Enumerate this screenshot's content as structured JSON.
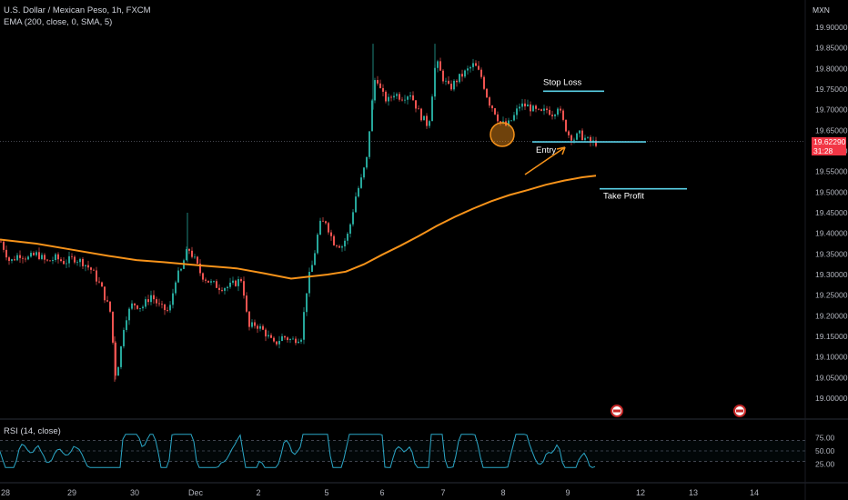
{
  "header": {
    "title": "U.S. Dollar / Mexican Peso, 1h, FXCM",
    "indicator": "EMA (200, close, 0, SMA, 5)",
    "currency": "MXN",
    "rsi_label": "RSI (14, close)"
  },
  "price_tag": {
    "price": "19.62290",
    "countdown": "31:28"
  },
  "colors": {
    "background": "#000000",
    "up": "#26a69a",
    "down": "#ef5350",
    "ema": "#f7931a",
    "rsi": "#2ba8c8",
    "level": "#5ad1e8",
    "marker": "#f7931a",
    "price_tag": "#f23645"
  },
  "annotations": {
    "stop_loss": "Stop Loss",
    "entry": "Entry",
    "take_profit": "Take Profit"
  },
  "chart_data": {
    "type": "candlestick",
    "title": "U.S. Dollar / Mexican Peso, 1h, FXCM",
    "ylim": [
      18.98,
      19.93
    ],
    "y_ticks": [
      "19.90000",
      "19.85000",
      "19.80000",
      "19.75000",
      "19.70000",
      "19.65000",
      "19.60000",
      "19.55000",
      "19.50000",
      "19.45000",
      "19.40000",
      "19.35000",
      "19.30000",
      "19.25000",
      "19.20000",
      "19.15000",
      "19.10000",
      "19.05000",
      "19.00000"
    ],
    "x_ticks": [
      "28",
      "29",
      "30",
      "Dec",
      "2",
      "5",
      "6",
      "7",
      "8",
      "9",
      "12",
      "13",
      "14"
    ],
    "last_price": 19.6229,
    "levels": {
      "stop_loss": 19.745,
      "entry": 19.622,
      "take_profit": 19.508
    },
    "ema_200": [
      [
        0,
        19.385
      ],
      [
        40,
        19.375
      ],
      [
        80,
        19.36
      ],
      [
        120,
        19.345
      ],
      [
        150,
        19.335
      ],
      [
        180,
        19.33
      ],
      [
        220,
        19.322
      ],
      [
        260,
        19.315
      ],
      [
        290,
        19.303
      ],
      [
        320,
        19.29
      ],
      [
        340,
        19.295
      ],
      [
        360,
        19.3
      ],
      [
        380,
        19.307
      ],
      [
        400,
        19.325
      ],
      [
        420,
        19.348
      ],
      [
        440,
        19.37
      ],
      [
        460,
        19.393
      ],
      [
        480,
        19.418
      ],
      [
        500,
        19.44
      ],
      [
        520,
        19.46
      ],
      [
        540,
        19.478
      ],
      [
        560,
        19.493
      ],
      [
        580,
        19.505
      ],
      [
        600,
        19.518
      ],
      [
        620,
        19.528
      ],
      [
        640,
        19.536
      ],
      [
        655,
        19.54
      ]
    ],
    "close_path": [
      [
        0,
        19.38
      ],
      [
        10,
        19.33
      ],
      [
        20,
        19.35
      ],
      [
        30,
        19.34
      ],
      [
        40,
        19.35
      ],
      [
        50,
        19.33
      ],
      [
        60,
        19.34
      ],
      [
        70,
        19.33
      ],
      [
        80,
        19.34
      ],
      [
        90,
        19.33
      ],
      [
        100,
        19.31
      ],
      [
        110,
        19.27
      ],
      [
        120,
        19.21
      ],
      [
        126,
        19.06
      ],
      [
        130,
        19.09
      ],
      [
        136,
        19.19
      ],
      [
        145,
        19.23
      ],
      [
        155,
        19.22
      ],
      [
        165,
        19.25
      ],
      [
        175,
        19.22
      ],
      [
        185,
        19.21
      ],
      [
        192,
        19.29
      ],
      [
        198,
        19.31
      ],
      [
        203,
        19.35
      ],
      [
        207,
        19.36
      ],
      [
        212,
        19.34
      ],
      [
        220,
        19.3
      ],
      [
        230,
        19.28
      ],
      [
        240,
        19.27
      ],
      [
        250,
        19.27
      ],
      [
        258,
        19.28
      ],
      [
        265,
        19.29
      ],
      [
        272,
        19.17
      ],
      [
        280,
        19.18
      ],
      [
        290,
        19.16
      ],
      [
        300,
        19.13
      ],
      [
        310,
        19.15
      ],
      [
        320,
        19.14
      ],
      [
        330,
        19.15
      ],
      [
        337,
        19.28
      ],
      [
        343,
        19.33
      ],
      [
        350,
        19.42
      ],
      [
        357,
        19.43
      ],
      [
        365,
        19.38
      ],
      [
        375,
        19.37
      ],
      [
        382,
        19.4
      ],
      [
        390,
        19.49
      ],
      [
        396,
        19.53
      ],
      [
        402,
        19.58
      ],
      [
        407,
        19.7
      ],
      [
        412,
        19.79
      ],
      [
        418,
        19.74
      ],
      [
        425,
        19.72
      ],
      [
        432,
        19.74
      ],
      [
        440,
        19.73
      ],
      [
        450,
        19.74
      ],
      [
        460,
        19.69
      ],
      [
        470,
        19.66
      ],
      [
        478,
        19.82
      ],
      [
        485,
        19.78
      ],
      [
        493,
        19.75
      ],
      [
        500,
        19.77
      ],
      [
        510,
        19.79
      ],
      [
        520,
        19.81
      ],
      [
        528,
        19.78
      ],
      [
        536,
        19.72
      ],
      [
        542,
        19.7
      ],
      [
        548,
        19.67
      ],
      [
        556,
        19.66
      ],
      [
        563,
        19.68
      ],
      [
        570,
        19.71
      ],
      [
        578,
        19.71
      ],
      [
        585,
        19.7
      ],
      [
        593,
        19.69
      ],
      [
        600,
        19.7
      ],
      [
        607,
        19.69
      ],
      [
        612,
        19.71
      ],
      [
        618,
        19.67
      ],
      [
        624,
        19.64
      ],
      [
        630,
        19.63
      ],
      [
        636,
        19.64
      ],
      [
        642,
        19.63
      ],
      [
        648,
        19.62
      ],
      [
        655,
        19.62
      ]
    ],
    "rsi": {
      "name": "RSI (14, close)",
      "ylim": [
        15,
        85
      ],
      "levels": [
        70,
        50,
        30
      ],
      "ticks": [
        "75.00",
        "50.00",
        "25.00"
      ]
    }
  }
}
